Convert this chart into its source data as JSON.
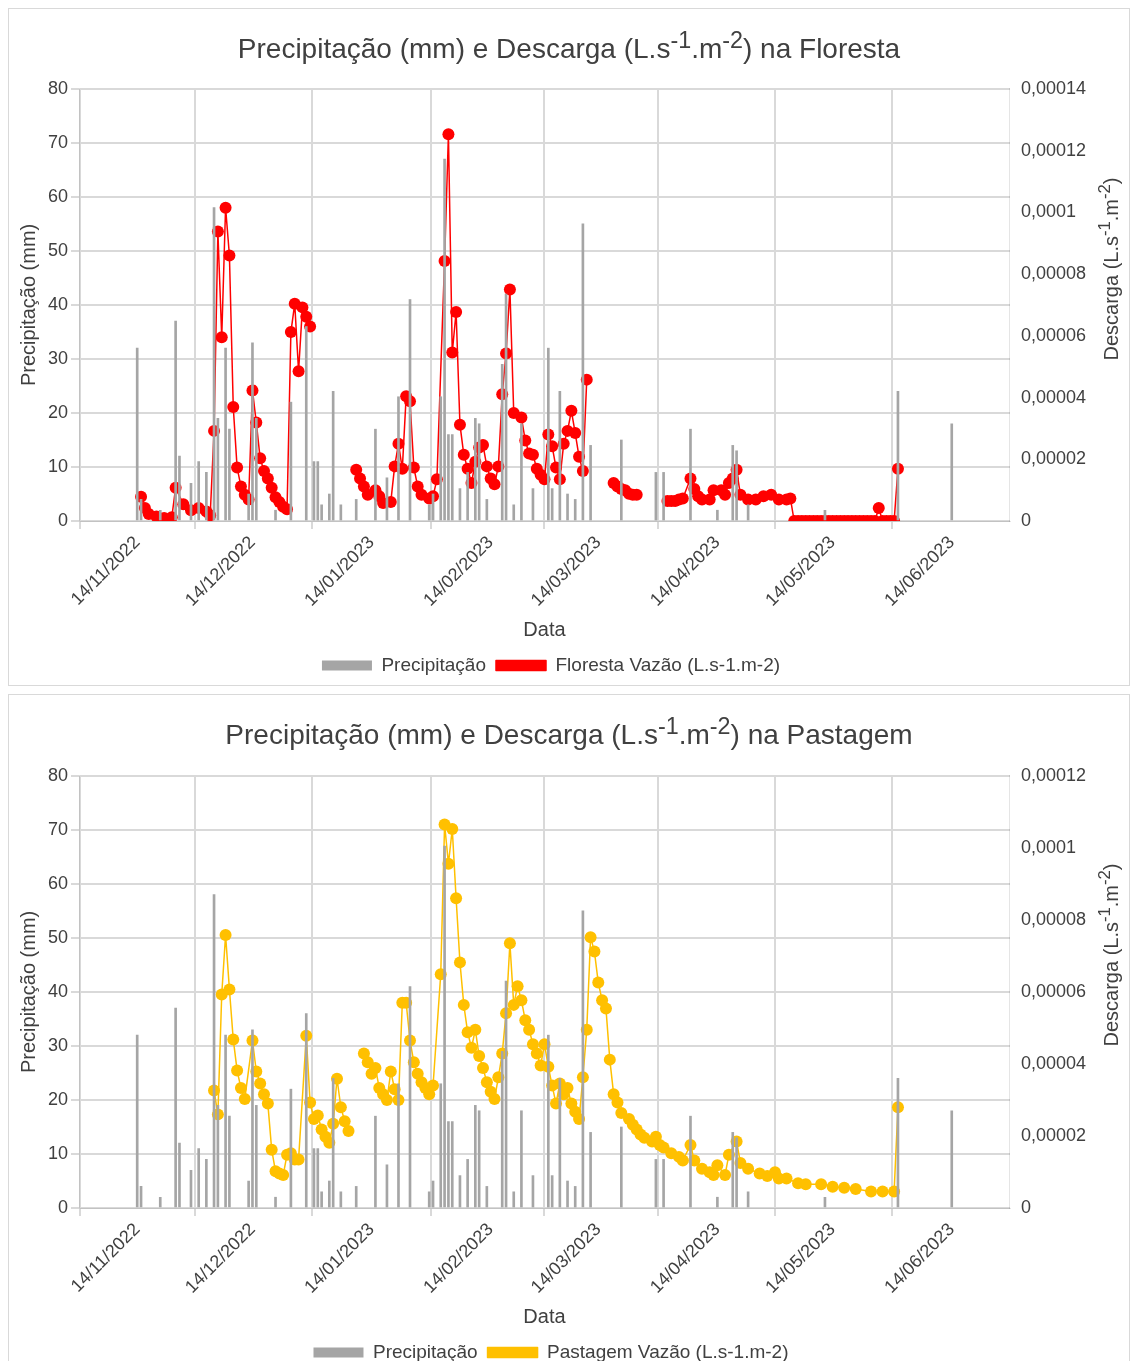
{
  "chart_data": [
    {
      "type": "line",
      "title": "Precipitação (mm) e Descarga (L.s$^{-1}$.m$^{-2}$) na Floresta",
      "xlabel": "Data",
      "ylabel": "Precipitação (mm)",
      "y2label": "Descarga (L.s$^{-1}$.m$^{-2}$)",
      "grid": true,
      "legend": "bottom",
      "marker": "circle",
      "xlim": [
        "2022-11-14",
        "2023-06-14"
      ],
      "xticks": [
        {
          "value": "2022-11-14",
          "label": "14/11/2022"
        },
        {
          "value": "2022-12-14",
          "label": "14/12/2022"
        },
        {
          "value": "2023-01-14",
          "label": "14/01/2023"
        },
        {
          "value": "2023-02-14",
          "label": "14/02/2023"
        },
        {
          "value": "2023-03-14",
          "label": "14/03/2023"
        },
        {
          "value": "2023-04-14",
          "label": "14/04/2023"
        },
        {
          "value": "2023-05-14",
          "label": "14/05/2023"
        },
        {
          "value": "2023-06-14",
          "label": "14/06/2023"
        }
      ],
      "ylim": [
        0,
        80
      ],
      "yticks": [
        0,
        10,
        20,
        30,
        40,
        50,
        60,
        70,
        80
      ],
      "y2lim": [
        0,
        0.00014
      ],
      "y2ticks": [
        0,
        {
          "value": 2e-05,
          "label": "0,00002"
        },
        {
          "value": 4e-05,
          "label": "0,00004"
        },
        {
          "value": 6e-05,
          "label": "0,00006"
        },
        {
          "value": 8e-05,
          "label": "0,00008"
        },
        {
          "value": 0.0001,
          "label": "0,0001"
        },
        {
          "value": 0.00012,
          "label": "0,00012"
        },
        {
          "value": 0.00014,
          "label": "0,00014"
        }
      ],
      "series": [
        {
          "name": "Precipitação",
          "type": "bar",
          "color": "#a5a5a5",
          "x": [
            "2022-11-14",
            "2022-11-15",
            "2022-11-20",
            "2022-11-24",
            "2022-11-25",
            "2022-11-28",
            "2022-11-30",
            "2022-12-02",
            "2022-12-04",
            "2022-12-05",
            "2022-12-07",
            "2022-12-08",
            "2022-12-13",
            "2022-12-14",
            "2022-12-15",
            "2022-12-20",
            "2022-12-24",
            "2022-12-28",
            "2022-12-30",
            "2022-12-31",
            "2023-01-01",
            "2023-01-03",
            "2023-01-04",
            "2023-01-06",
            "2023-01-10",
            "2023-01-15",
            "2023-01-18",
            "2023-01-21",
            "2023-01-24",
            "2023-01-29",
            "2023-01-30",
            "2023-02-01",
            "2023-02-02",
            "2023-02-03",
            "2023-02-04",
            "2023-02-06",
            "2023-02-08",
            "2023-02-10",
            "2023-02-11",
            "2023-02-13",
            "2023-02-17",
            "2023-02-18",
            "2023-02-20",
            "2023-02-22",
            "2023-02-25",
            "2023-03-01",
            "2023-03-02",
            "2023-03-04",
            "2023-03-06",
            "2023-03-08",
            "2023-03-10",
            "2023-03-12",
            "2023-03-20",
            "2023-03-29",
            "2023-03-31",
            "2023-04-07",
            "2023-04-14",
            "2023-04-18",
            "2023-04-19",
            "2023-04-22",
            "2023-05-12",
            "2023-05-31",
            "2023-06-14"
          ],
          "values": [
            32,
            4,
            2,
            37,
            12,
            7,
            11,
            9,
            58,
            19,
            32,
            17,
            5,
            33,
            19,
            2,
            22,
            36,
            11,
            11,
            3,
            5,
            24,
            3,
            4,
            17,
            8,
            23,
            41,
            3,
            5,
            23,
            67,
            16,
            16,
            6,
            9,
            19,
            18,
            4,
            29,
            42,
            3,
            18,
            6,
            32,
            6,
            24,
            5,
            4,
            55,
            14,
            15,
            9,
            9,
            17,
            2,
            14,
            13,
            3,
            2,
            24,
            18
          ]
        },
        {
          "name": "Floresta Vazão (L.s-1.m-2)",
          "axis": "y2",
          "color": "#ff0000",
          "x": [
            "2022-11-15",
            "2022-11-16",
            "2022-11-17",
            "2022-11-19",
            "2022-11-21",
            "2022-11-23",
            "2022-11-24",
            "2022-11-26",
            "2022-11-28",
            "2022-11-30",
            "2022-12-02",
            "2022-12-03",
            "2022-12-04",
            "2022-12-05",
            "2022-12-06",
            "2022-12-07",
            "2022-12-08",
            "2022-12-09",
            "2022-12-10",
            "2022-12-11",
            "2022-12-12",
            "2022-12-13",
            "2022-12-14",
            "2022-12-15",
            "2022-12-16",
            "2022-12-17",
            "2022-12-18",
            "2022-12-19",
            "2022-12-20",
            "2022-12-21",
            "2022-12-22",
            "2022-12-23",
            "2022-12-24",
            "2022-12-25",
            "2022-12-26",
            "2022-12-27",
            "2022-12-28",
            "2022-12-29",
            "2023-01-01",
            "2023-01-10",
            "2023-01-11",
            "2023-01-12",
            "2023-01-13",
            "2023-01-15",
            "2023-01-16",
            "2023-01-17",
            "2023-01-19",
            "2023-01-20",
            "2023-01-21",
            "2023-01-22",
            "2023-01-23",
            "2023-01-24",
            "2023-01-25",
            "2023-01-26",
            "2023-01-27",
            "2023-01-29",
            "2023-01-30",
            "2023-01-31",
            "2023-02-02",
            "2023-02-03",
            "2023-02-04",
            "2023-02-05",
            "2023-02-06",
            "2023-02-07",
            "2023-02-08",
            "2023-02-09",
            "2023-02-10",
            "2023-02-11",
            "2023-02-12",
            "2023-02-13",
            "2023-02-14",
            "2023-02-15",
            "2023-02-16",
            "2023-02-17",
            "2023-02-18",
            "2023-02-19",
            "2023-02-20",
            "2023-02-22",
            "2023-02-23",
            "2023-02-24",
            "2023-02-25",
            "2023-02-26",
            "2023-02-27",
            "2023-02-28",
            "2023-03-01",
            "2023-03-02",
            "2023-03-03",
            "2023-03-04",
            "2023-03-05",
            "2023-03-06",
            "2023-03-07",
            "2023-03-08",
            "2023-03-09",
            "2023-03-10",
            "2023-03-11",
            "2023-03-14",
            "2023-03-18",
            "2023-03-19",
            "2023-03-20",
            "2023-03-21",
            "2023-03-22",
            "2023-03-23",
            "2023-03-24",
            "2023-03-28",
            "2023-04-01",
            "2023-04-02",
            "2023-04-03",
            "2023-04-04",
            "2023-04-05",
            "2023-04-07",
            "2023-04-08",
            "2023-04-09",
            "2023-04-10",
            "2023-04-12",
            "2023-04-13",
            "2023-04-15",
            "2023-04-16",
            "2023-04-17",
            "2023-04-18",
            "2023-04-19",
            "2023-04-20",
            "2023-04-22",
            "2023-04-24",
            "2023-04-26",
            "2023-04-28",
            "2023-04-30",
            "2023-05-02",
            "2023-05-03",
            "2023-05-04",
            "2023-05-05",
            "2023-05-06",
            "2023-05-07",
            "2023-05-08",
            "2023-05-09",
            "2023-05-10",
            "2023-05-11",
            "2023-05-12",
            "2023-05-13",
            "2023-05-14",
            "2023-05-15",
            "2023-05-16",
            "2023-05-17",
            "2023-05-18",
            "2023-05-19",
            "2023-05-20",
            "2023-05-21",
            "2023-05-22",
            "2023-05-23",
            "2023-05-24",
            "2023-05-25",
            "2023-05-26",
            "2023-05-27",
            "2023-05-28",
            "2023-05-29",
            "2023-05-30",
            "2023-05-31"
          ],
          "values": [
            7.9e-06,
            4.2e-06,
            2.3e-06,
            1.5e-06,
            1e-06,
            1.2e-06,
            1.08e-05,
            5.4e-06,
            3.5e-06,
            4.2e-06,
            3.1e-06,
            1.9e-06,
            2.92e-05,
            9.38e-05,
            5.95e-05,
            0.0001015,
            8.6e-05,
            3.69e-05,
            1.73e-05,
            1.12e-05,
            8.5e-06,
            7e-06,
            4.23e-05,
            3.19e-05,
            2.03e-05,
            1.62e-05,
            1.38e-05,
            1.08e-05,
            7.7e-06,
            6.2e-06,
            4.6e-06,
            3.8e-06,
            6.12e-05,
            7.04e-05,
            4.85e-05,
            6.92e-05,
            6.62e-05,
            6.3e-05,
            null,
            1.66e-05,
            1.38e-05,
            1.12e-05,
            8.5e-06,
            1e-05,
            8e-06,
            5.8e-06,
            6.2e-06,
            1.77e-05,
            2.5e-05,
            1.69e-05,
            4.04e-05,
            3.88e-05,
            1.73e-05,
            1.12e-05,
            8.5e-06,
            7.3e-06,
            8e-06,
            1.35e-05,
            8.42e-05,
            0.0001253,
            5.46e-05,
            6.77e-05,
            3.12e-05,
            2.15e-05,
            1.69e-05,
            1.23e-05,
            1.92e-05,
            2.38e-05,
            2.46e-05,
            1.77e-05,
            1.38e-05,
            1.19e-05,
            1.77e-05,
            4.11e-05,
            5.43e-05,
            7.5e-05,
            3.5e-05,
            3.35e-05,
            2.61e-05,
            2.19e-05,
            2.15e-05,
            1.69e-05,
            1.5e-05,
            1.35e-05,
            2.8e-05,
            2.42e-05,
            1.73e-05,
            1.35e-05,
            2.5e-05,
            2.92e-05,
            3.57e-05,
            2.85e-05,
            2.08e-05,
            1.62e-05,
            4.58e-05,
            null,
            1.23e-05,
            1.12e-05,
            1.04e-05,
            1e-05,
            8.8e-06,
            8.5e-06,
            8.5e-06,
            null,
            6.5e-06,
            6.5e-06,
            6.5e-06,
            7e-06,
            7.3e-06,
            1.38e-05,
            1.04e-05,
            8e-06,
            7e-06,
            7e-06,
            1e-05,
            1e-05,
            8.5e-06,
            1.23e-05,
            1.38e-05,
            1.66e-05,
            8.5e-06,
            7e-06,
            7e-06,
            8e-06,
            8.5e-06,
            7e-06,
            7e-06,
            7.3e-06,
            0,
            0,
            0,
            0,
            0,
            0,
            0,
            0,
            0,
            0,
            0,
            0,
            0,
            0,
            0,
            0,
            0,
            0,
            0,
            0,
            0,
            0,
            4.2e-06,
            0,
            0,
            0,
            0,
            1.69e-05
          ]
        }
      ]
    },
    {
      "type": "line",
      "title": "Precipitação (mm) e Descarga (L.s$^{-1}$.m$^{-2}$) na Pastagem",
      "xlabel": "Data",
      "ylabel": "Precipitação (mm)",
      "y2label": "Descarga (L.s$^{-1}$.m$^{-2}$)",
      "grid": true,
      "legend": "bottom",
      "marker": "circle",
      "xlim": [
        "2022-11-14",
        "2023-06-14"
      ],
      "xticks": [
        {
          "value": "2022-11-14",
          "label": "14/11/2022"
        },
        {
          "value": "2022-12-14",
          "label": "14/12/2022"
        },
        {
          "value": "2023-01-14",
          "label": "14/01/2023"
        },
        {
          "value": "2023-02-14",
          "label": "14/02/2023"
        },
        {
          "value": "2023-03-14",
          "label": "14/03/2023"
        },
        {
          "value": "2023-04-14",
          "label": "14/04/2023"
        },
        {
          "value": "2023-05-14",
          "label": "14/05/2023"
        },
        {
          "value": "2023-06-14",
          "label": "14/06/2023"
        }
      ],
      "ylim": [
        0,
        80
      ],
      "yticks": [
        0,
        10,
        20,
        30,
        40,
        50,
        60,
        70,
        80
      ],
      "y2lim": [
        0,
        0.00012
      ],
      "y2ticks": [
        0,
        {
          "value": 2e-05,
          "label": "0,00002"
        },
        {
          "value": 4e-05,
          "label": "0,00004"
        },
        {
          "value": 6e-05,
          "label": "0,00006"
        },
        {
          "value": 8e-05,
          "label": "0,00008"
        },
        {
          "value": 0.0001,
          "label": "0,0001"
        },
        {
          "value": 0.00012,
          "label": "0,00012"
        }
      ],
      "series": [
        {
          "name": "Precipitação",
          "type": "bar",
          "color": "#a5a5a5",
          "x": [
            "2022-11-14",
            "2022-11-15",
            "2022-11-20",
            "2022-11-24",
            "2022-11-25",
            "2022-11-28",
            "2022-11-30",
            "2022-12-02",
            "2022-12-04",
            "2022-12-05",
            "2022-12-07",
            "2022-12-08",
            "2022-12-13",
            "2022-12-14",
            "2022-12-15",
            "2022-12-20",
            "2022-12-24",
            "2022-12-28",
            "2022-12-30",
            "2022-12-31",
            "2023-01-01",
            "2023-01-03",
            "2023-01-04",
            "2023-01-06",
            "2023-01-10",
            "2023-01-15",
            "2023-01-18",
            "2023-01-21",
            "2023-01-24",
            "2023-01-29",
            "2023-01-30",
            "2023-02-01",
            "2023-02-02",
            "2023-02-03",
            "2023-02-04",
            "2023-02-06",
            "2023-02-08",
            "2023-02-10",
            "2023-02-11",
            "2023-02-13",
            "2023-02-17",
            "2023-02-18",
            "2023-02-20",
            "2023-02-22",
            "2023-02-25",
            "2023-03-01",
            "2023-03-02",
            "2023-03-04",
            "2023-03-06",
            "2023-03-08",
            "2023-03-10",
            "2023-03-12",
            "2023-03-20",
            "2023-03-29",
            "2023-03-31",
            "2023-04-07",
            "2023-04-14",
            "2023-04-18",
            "2023-04-19",
            "2023-04-22",
            "2023-05-12",
            "2023-05-31",
            "2023-06-14"
          ],
          "values": [
            32,
            4,
            2,
            37,
            12,
            7,
            11,
            9,
            58,
            19,
            32,
            17,
            5,
            33,
            19,
            2,
            22,
            36,
            11,
            11,
            3,
            5,
            24,
            3,
            4,
            17,
            8,
            23,
            41,
            3,
            5,
            23,
            67,
            16,
            16,
            6,
            9,
            19,
            18,
            4,
            29,
            42,
            3,
            18,
            6,
            32,
            6,
            24,
            5,
            4,
            55,
            14,
            15,
            9,
            9,
            17,
            2,
            14,
            13,
            3,
            2,
            24,
            18
          ]
        },
        {
          "name": "Pastagem Vazão (L.s-1.m-2)",
          "axis": "y2",
          "color": "#ffc000",
          "x": [
            "2022-12-04",
            "2022-12-05",
            "2022-12-06",
            "2022-12-07",
            "2022-12-08",
            "2022-12-09",
            "2022-12-10",
            "2022-12-11",
            "2022-12-12",
            "2022-12-14",
            "2022-12-15",
            "2022-12-16",
            "2022-12-17",
            "2022-12-18",
            "2022-12-19",
            "2022-12-20",
            "2022-12-21",
            "2022-12-22",
            "2022-12-23",
            "2022-12-24",
            "2022-12-25",
            "2022-12-26",
            "2022-12-28",
            "2022-12-29",
            "2022-12-30",
            "2022-12-31",
            "2023-01-01",
            "2023-01-02",
            "2023-01-03",
            "2023-01-04",
            "2023-01-05",
            "2023-01-06",
            "2023-01-07",
            "2023-01-08",
            "2023-01-10",
            "2023-01-12",
            "2023-01-13",
            "2023-01-14",
            "2023-01-15",
            "2023-01-16",
            "2023-01-17",
            "2023-01-18",
            "2023-01-19",
            "2023-01-20",
            "2023-01-21",
            "2023-01-22",
            "2023-01-23",
            "2023-01-24",
            "2023-01-25",
            "2023-01-26",
            "2023-01-27",
            "2023-01-28",
            "2023-01-29",
            "2023-01-30",
            "2023-02-01",
            "2023-02-02",
            "2023-02-03",
            "2023-02-04",
            "2023-02-05",
            "2023-02-06",
            "2023-02-07",
            "2023-02-08",
            "2023-02-09",
            "2023-02-10",
            "2023-02-11",
            "2023-02-12",
            "2023-02-13",
            "2023-02-14",
            "2023-02-15",
            "2023-02-16",
            "2023-02-17",
            "2023-02-18",
            "2023-02-19",
            "2023-02-20",
            "2023-02-21",
            "2023-02-22",
            "2023-02-23",
            "2023-02-24",
            "2023-02-25",
            "2023-02-26",
            "2023-02-27",
            "2023-02-28",
            "2023-03-01",
            "2023-03-02",
            "2023-03-03",
            "2023-03-04",
            "2023-03-05",
            "2023-03-06",
            "2023-03-07",
            "2023-03-08",
            "2023-03-09",
            "2023-03-10",
            "2023-03-11",
            "2023-03-12",
            "2023-03-13",
            "2023-03-14",
            "2023-03-15",
            "2023-03-16",
            "2023-03-17",
            "2023-03-18",
            "2023-03-19",
            "2023-03-20",
            "2023-03-22",
            "2023-03-23",
            "2023-03-24",
            "2023-03-25",
            "2023-03-26",
            "2023-03-28",
            "2023-03-29",
            "2023-03-30",
            "2023-03-31",
            "2023-04-02",
            "2023-04-04",
            "2023-04-05",
            "2023-04-07",
            "2023-04-08",
            "2023-04-10",
            "2023-04-12",
            "2023-04-13",
            "2023-04-14",
            "2023-04-16",
            "2023-04-17",
            "2023-04-19",
            "2023-04-20",
            "2023-04-22",
            "2023-04-25",
            "2023-04-27",
            "2023-04-29",
            "2023-04-30",
            "2023-05-02",
            "2023-05-05",
            "2023-05-07",
            "2023-05-11",
            "2023-05-14",
            "2023-05-17",
            "2023-05-20",
            "2023-05-24",
            "2023-05-27",
            "2023-05-30",
            "2023-05-31"
          ],
          "values": [
            3.26e-05,
            2.6e-05,
            5.93e-05,
            7.58e-05,
            6.07e-05,
            4.68e-05,
            3.82e-05,
            3.33e-05,
            3.03e-05,
            4.65e-05,
            3.79e-05,
            3.46e-05,
            3.16e-05,
            2.9e-05,
            1.62e-05,
            1.02e-05,
            9.6e-06,
            9.2e-06,
            1.48e-05,
            1.52e-05,
            1.35e-05,
            1.35e-05,
            4.78e-05,
            2.93e-05,
            2.47e-05,
            2.57e-05,
            2.18e-05,
            1.98e-05,
            1.81e-05,
            2.34e-05,
            3.59e-05,
            2.8e-05,
            2.41e-05,
            2.14e-05,
            null,
            4.29e-05,
            4.05e-05,
            3.73e-05,
            3.89e-05,
            3.33e-05,
            3.16e-05,
            3e-05,
            3.79e-05,
            3.3e-05,
            3e-05,
            5.7e-05,
            5.7e-05,
            4.65e-05,
            4.05e-05,
            3.73e-05,
            3.49e-05,
            3.33e-05,
            3.16e-05,
            3.4e-05,
            6.49e-05,
            0.0001065,
            9.56e-05,
            0.0001052,
            8.6e-05,
            6.82e-05,
            5.64e-05,
            4.88e-05,
            4.45e-05,
            4.95e-05,
            4.22e-05,
            3.89e-05,
            3.49e-05,
            3.23e-05,
            3.03e-05,
            3.63e-05,
            4.29e-05,
            5.41e-05,
            7.35e-05,
            5.64e-05,
            6.16e-05,
            5.77e-05,
            5.21e-05,
            4.95e-05,
            4.55e-05,
            4.29e-05,
            3.96e-05,
            4.55e-05,
            3.92e-05,
            3.4e-05,
            2.9e-05,
            3.46e-05,
            3.16e-05,
            3.33e-05,
            2.9e-05,
            2.67e-05,
            2.47e-05,
            3.63e-05,
            4.95e-05,
            7.52e-05,
            7.12e-05,
            6.26e-05,
            5.77e-05,
            5.54e-05,
            4.12e-05,
            3.16e-05,
            2.93e-05,
            2.64e-05,
            2.47e-05,
            2.31e-05,
            2.18e-05,
            2.04e-05,
            1.95e-05,
            1.85e-05,
            1.98e-05,
            1.75e-05,
            1.68e-05,
            1.52e-05,
            1.42e-05,
            1.32e-05,
            1.75e-05,
            1.32e-05,
            1.09e-05,
            9.9e-06,
            9.2e-06,
            1.19e-05,
            9.2e-06,
            1.48e-05,
            1.85e-05,
            1.25e-05,
            1.09e-05,
            9.6e-06,
            8.9e-06,
            9.9e-06,
            8.2e-06,
            8.2e-06,
            6.9e-06,
            6.6e-06,
            6.6e-06,
            5.9e-06,
            5.6e-06,
            5.3e-06,
            4.6e-06,
            4.6e-06,
            4.6e-06,
            2.8e-05
          ]
        }
      ]
    }
  ]
}
